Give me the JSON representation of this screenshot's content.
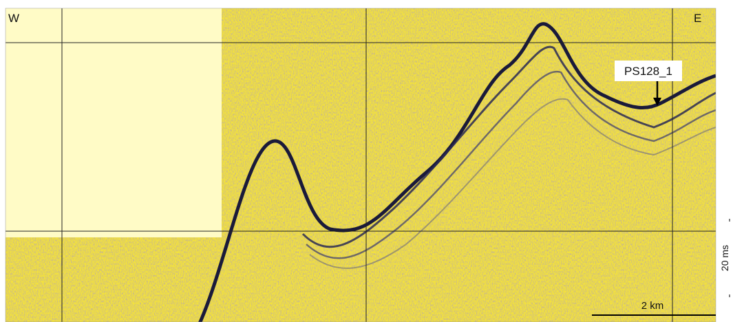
{
  "labels": {
    "west": "W",
    "east": "E",
    "site": "PS128_1",
    "scale_horizontal": "2 km",
    "scale_vertical": "20 ms"
  }
}
